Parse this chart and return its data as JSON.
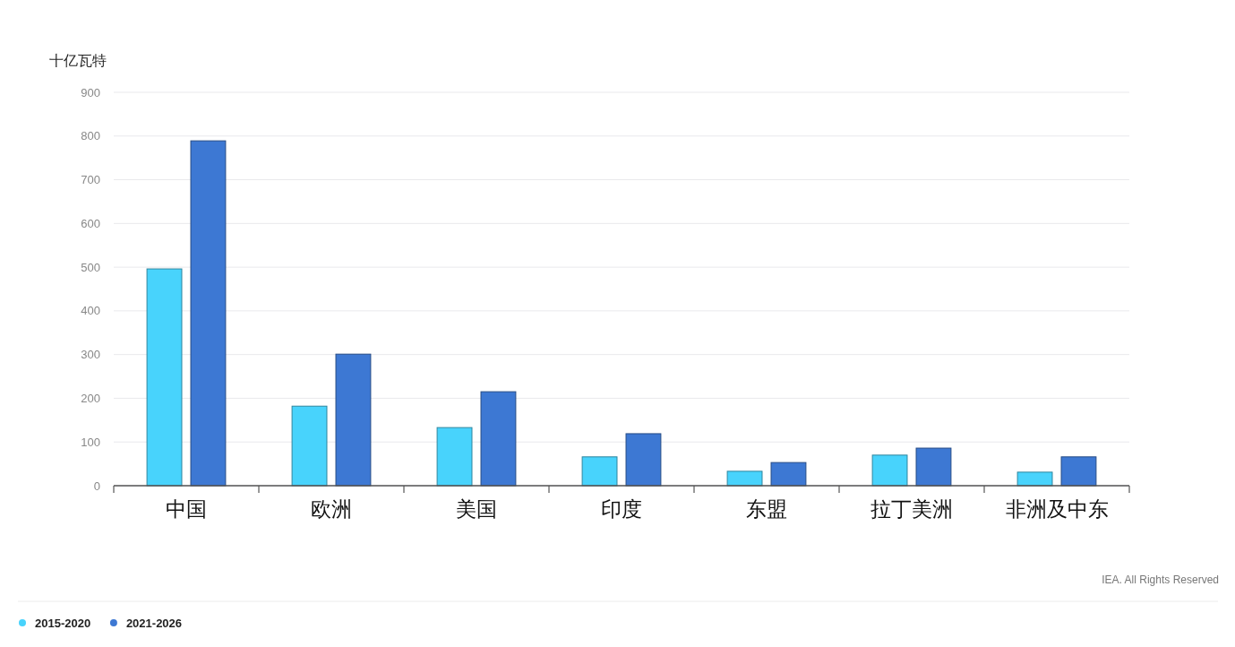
{
  "chart_data": {
    "type": "bar",
    "ylabel": "十亿瓦特",
    "categories": [
      "中国",
      "欧洲",
      "美国",
      "印度",
      "东盟",
      "拉丁美洲",
      "非洲及中东"
    ],
    "series": [
      {
        "name": "2015-2020",
        "color": "#48d3fc",
        "values": [
          496,
          182,
          133,
          66,
          33,
          70,
          31
        ]
      },
      {
        "name": "2021-2026",
        "color": "#3d78d3",
        "values": [
          789,
          301,
          215,
          119,
          53,
          86,
          66
        ]
      }
    ],
    "ylim": [
      0,
      900
    ],
    "yticks": [
      0,
      100,
      200,
      300,
      400,
      500,
      600,
      700,
      800,
      900
    ],
    "grid": "y",
    "legend": "bottom left",
    "annotations": [
      "IEA. All Rights Reserved"
    ]
  }
}
